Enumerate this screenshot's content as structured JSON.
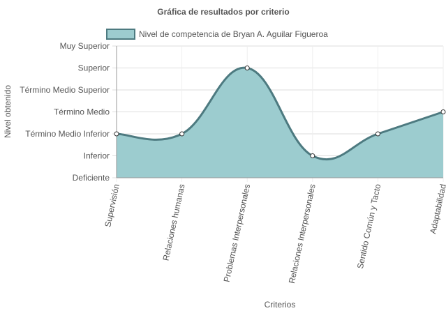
{
  "chart_data": {
    "type": "area",
    "title": "Gráfica de resultados por criterio",
    "xlabel": "Criterios",
    "ylabel": "Nivel obtenido",
    "y_levels": [
      "Deficiente",
      "Inferior",
      "Término Medio Inferior",
      "Término Medio",
      "Término Medio Superior",
      "Superior",
      "Muy Superior"
    ],
    "categories": [
      "Supervisión",
      "Relaciones humanas",
      "Problemas Interpersonales",
      "Relaciones Interpersonales",
      "Sentido Común y Tacto",
      "Adaptabilidad"
    ],
    "series": [
      {
        "name": "Nivel de competencia de Bryan A. Aguilar Figueroa",
        "values": [
          2,
          2,
          5,
          1,
          2,
          3
        ],
        "value_labels": [
          "Término Medio Inferior",
          "Término Medio Inferior",
          "Superior",
          "Inferior",
          "Término Medio Inferior",
          "Término Medio"
        ]
      }
    ],
    "ylim": [
      0,
      6
    ],
    "grid": true,
    "legend_position": "top-left",
    "colors": {
      "fill": "#9ccccf",
      "line": "#4d7a80",
      "point_fill": "#ffffff",
      "point_stroke": "#333333",
      "grid": "#dddddd",
      "grid_x": "#eeeeee",
      "axis": "#999999",
      "text": "#555555"
    }
  }
}
